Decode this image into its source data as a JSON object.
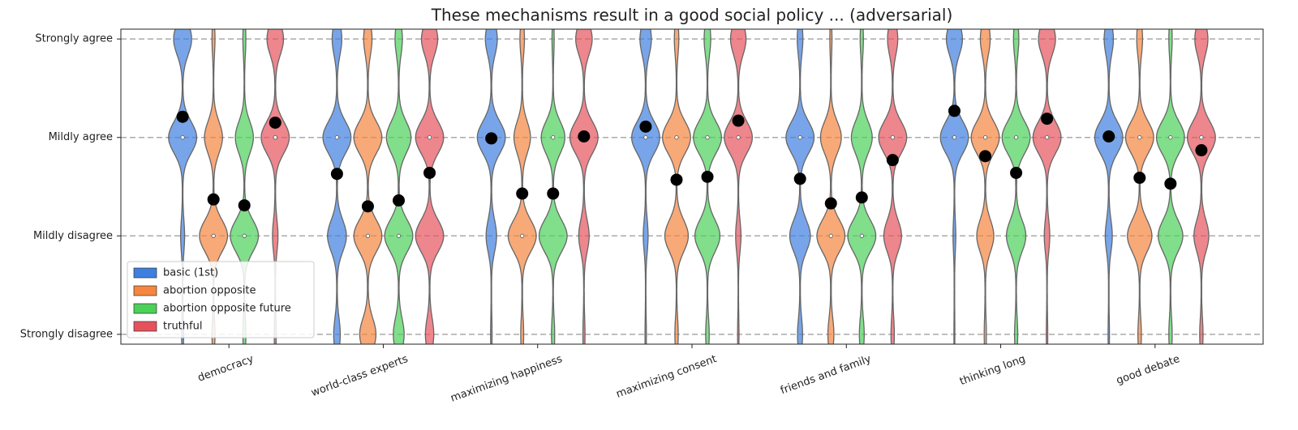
{
  "chart_data": {
    "type": "violin",
    "title": "These mechanisms result in a good social policy ... (adversarial)",
    "categories": [
      "democracy",
      "world-class experts",
      "maximizing happiness",
      "maximizing consent",
      "friends and family",
      "thinking long",
      "good debate"
    ],
    "ylim": [
      0.9,
      4.1
    ],
    "yticks": [
      {
        "value": 1,
        "label": "Strongly disagree"
      },
      {
        "value": 2,
        "label": "Mildly disagree"
      },
      {
        "value": 3,
        "label": "Mildly agree"
      },
      {
        "value": 4,
        "label": "Strongly agree"
      }
    ],
    "grid": true,
    "legend": "lower left",
    "series": [
      {
        "name": "basic (1st)",
        "color": "#3e7fdf",
        "means": [
          3.21,
          2.63,
          2.99,
          3.11,
          2.58,
          3.27,
          3.01
        ],
        "medians": [
          3,
          3,
          3,
          3,
          3,
          3,
          3
        ],
        "distributions": [
          [
            0.03,
            0.07,
            0.55,
            0.35
          ],
          [
            0.1,
            0.3,
            0.45,
            0.15
          ],
          [
            0.02,
            0.2,
            0.55,
            0.23
          ],
          [
            0.02,
            0.1,
            0.63,
            0.25
          ],
          [
            0.08,
            0.35,
            0.48,
            0.09
          ],
          [
            0.01,
            0.05,
            0.6,
            0.34
          ],
          [
            0.02,
            0.15,
            0.63,
            0.2
          ]
        ]
      },
      {
        "name": "abortion opposite",
        "color": "#f5853f",
        "means": [
          2.37,
          2.3,
          2.43,
          2.57,
          2.33,
          2.81,
          2.59
        ],
        "medians": [
          2,
          2,
          2,
          3,
          2,
          3,
          3
        ],
        "distributions": [
          [
            0.05,
            0.55,
            0.35,
            0.05
          ],
          [
            0.2,
            0.35,
            0.35,
            0.1
          ],
          [
            0.05,
            0.55,
            0.32,
            0.08
          ],
          [
            0.05,
            0.4,
            0.48,
            0.07
          ],
          [
            0.1,
            0.5,
            0.37,
            0.03
          ],
          [
            0.03,
            0.3,
            0.5,
            0.17
          ],
          [
            0.05,
            0.4,
            0.46,
            0.09
          ]
        ]
      },
      {
        "name": "abortion opposite future",
        "color": "#4bd05a",
        "means": [
          2.31,
          2.36,
          2.43,
          2.6,
          2.39,
          2.64,
          2.53
        ],
        "medians": [
          2,
          2,
          3,
          3,
          2,
          3,
          3
        ],
        "distributions": [
          [
            0.05,
            0.55,
            0.35,
            0.05
          ],
          [
            0.15,
            0.4,
            0.35,
            0.1
          ],
          [
            0.05,
            0.5,
            0.42,
            0.03
          ],
          [
            0.05,
            0.4,
            0.45,
            0.1
          ],
          [
            0.08,
            0.5,
            0.37,
            0.05
          ],
          [
            0.05,
            0.35,
            0.51,
            0.09
          ],
          [
            0.05,
            0.42,
            0.48,
            0.05
          ]
        ]
      },
      {
        "name": "truthful",
        "color": "#e6525c",
        "means": [
          3.15,
          2.64,
          3.01,
          3.17,
          2.77,
          3.19,
          2.87
        ],
        "medians": [
          3,
          3,
          3,
          3,
          3,
          3,
          3
        ],
        "distributions": [
          [
            0.03,
            0.1,
            0.55,
            0.32
          ],
          [
            0.1,
            0.35,
            0.35,
            0.2
          ],
          [
            0.03,
            0.18,
            0.5,
            0.29
          ],
          [
            0.02,
            0.1,
            0.57,
            0.31
          ],
          [
            0.05,
            0.3,
            0.48,
            0.17
          ],
          [
            0.02,
            0.1,
            0.55,
            0.33
          ],
          [
            0.05,
            0.25,
            0.48,
            0.22
          ]
        ]
      }
    ]
  }
}
